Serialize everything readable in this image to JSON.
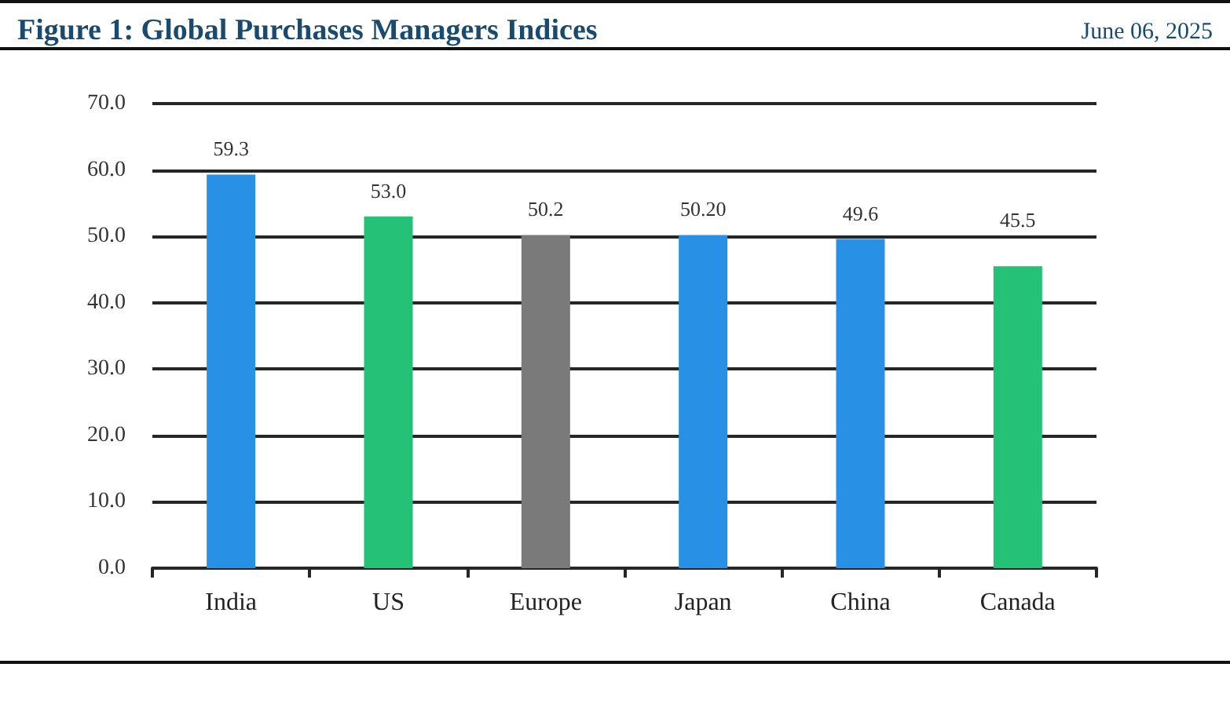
{
  "chart_data": {
    "type": "bar",
    "title": "Figure 1: Global Purchases Managers Indices",
    "subtitle": "June 06, 2025",
    "categories": [
      "India",
      "US",
      "Europe",
      "Japan",
      "China",
      "Canada"
    ],
    "values": [
      59.3,
      53.0,
      50.2,
      50.2,
      49.6,
      45.5
    ],
    "value_labels": [
      "59.3",
      "53.0",
      "50.2",
      "50.20",
      "49.6",
      "45.5"
    ],
    "colors": [
      "#2891e6",
      "#25c176",
      "#7a7a7a",
      "#2891e6",
      "#2891e6",
      "#25c176"
    ],
    "ylim": [
      0,
      70
    ],
    "yticks": [
      {
        "value": 0,
        "label": "0.0"
      },
      {
        "value": 10,
        "label": "10.0"
      },
      {
        "value": 20,
        "label": "20.0"
      },
      {
        "value": 30,
        "label": "30.0"
      },
      {
        "value": 40,
        "label": "40.0"
      },
      {
        "value": 50,
        "label": "50.0"
      },
      {
        "value": 60,
        "label": "60.0"
      },
      {
        "value": 70,
        "label": "70.0"
      }
    ],
    "grid": "y"
  }
}
